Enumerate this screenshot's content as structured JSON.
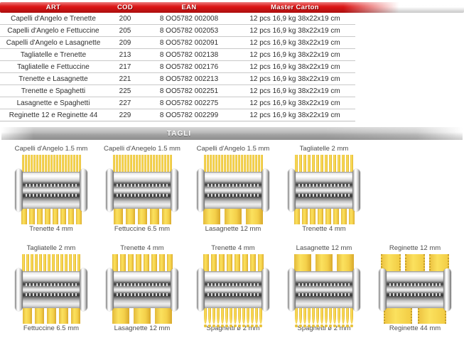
{
  "table": {
    "headers": {
      "art": "ART",
      "cod": "COD",
      "ean": "EAN",
      "carton": "Master Carton"
    },
    "rows": [
      {
        "art": "Capelli d'Angelo e Trenette",
        "cod": "200",
        "ean": "8 OO5782 002008",
        "carton": "12 pcs 16,9 kg 38x22x19 cm"
      },
      {
        "art": "Capelli d'Angelo e Fettuccine",
        "cod": "205",
        "ean": "8 OO5782 002053",
        "carton": "12 pcs 16,9 kg 38x22x19 cm"
      },
      {
        "art": "Capelli d'Angelo e Lasagnette",
        "cod": "209",
        "ean": "8 OO5782 002091",
        "carton": "12 pcs 16,9 kg 38x22x19 cm"
      },
      {
        "art": "Tagliatelle e Trenette",
        "cod": "213",
        "ean": "8 OO5782 002138",
        "carton": "12 pcs 16,9 kg 38x22x19 cm"
      },
      {
        "art": "Tagliatelle e Fettuccine",
        "cod": "217",
        "ean": "8 OO5782 002176",
        "carton": "12 pcs 16,9 kg 38x22x19 cm"
      },
      {
        "art": "Trenette e Lasagnette",
        "cod": "221",
        "ean": "8 OO5782 002213",
        "carton": "12 pcs 16,9 kg 38x22x19 cm"
      },
      {
        "art": "Trenette e Spaghetti",
        "cod": "225",
        "ean": "8 OO5782 002251",
        "carton": "12 pcs 16,9 kg 38x22x19 cm"
      },
      {
        "art": "Lasagnette e Spaghetti",
        "cod": "227",
        "ean": "8 OO5782 002275",
        "carton": "12 pcs 16,9 kg 38x22x19 cm"
      },
      {
        "art": "Reginette 12 e Reginette 44",
        "cod": "229",
        "ean": "8 OO5782 002299",
        "carton": "12 pcs 16,9 kg 38x22x19 cm"
      }
    ]
  },
  "banner": {
    "label": "TAGLI"
  },
  "cutters": {
    "rows": [
      [
        {
          "top": {
            "label": "Capelli d'Angelo 1.5 mm",
            "mm": 1.5,
            "style": "flat"
          },
          "bottom": {
            "label": "Trenette 4 mm",
            "mm": 4,
            "style": "flat"
          }
        },
        {
          "top": {
            "label": "Capelli d'Anegelo 1.5 mm",
            "mm": 1.5,
            "style": "flat"
          },
          "bottom": {
            "label": "Fettuccine 6.5 mm",
            "mm": 6.5,
            "style": "flat"
          }
        },
        {
          "top": {
            "label": "Capelli d'Angelo 1.5 mm",
            "mm": 1.5,
            "style": "flat"
          },
          "bottom": {
            "label": "Lasagnette 12 mm",
            "mm": 12,
            "style": "flat"
          }
        },
        {
          "top": {
            "label": "Tagliatelle 2 mm",
            "mm": 2,
            "style": "flat"
          },
          "bottom": {
            "label": "Trenette 4 mm",
            "mm": 4,
            "style": "flat"
          }
        }
      ],
      [
        {
          "top": {
            "label": "Tagliatelle 2 mm",
            "mm": 2,
            "style": "flat"
          },
          "bottom": {
            "label": "Fettuccine 6.5 mm",
            "mm": 6.5,
            "style": "flat"
          }
        },
        {
          "top": {
            "label": "Trenette 4 mm",
            "mm": 4,
            "style": "flat"
          },
          "bottom": {
            "label": "Lasagnette 12 mm",
            "mm": 12,
            "style": "flat"
          }
        },
        {
          "top": {
            "label": "Trenette 4 mm",
            "mm": 4,
            "style": "flat"
          },
          "bottom": {
            "label": "Spaghetti ø 2 mm",
            "mm": 2,
            "style": "round"
          }
        },
        {
          "top": {
            "label": "Lasagnette 12 mm",
            "mm": 12,
            "style": "flat"
          },
          "bottom": {
            "label": "Spaghetti ø 2 mm",
            "mm": 2,
            "style": "round"
          }
        },
        {
          "top": {
            "label": "Reginette 12 mm",
            "mm": 12,
            "style": "serrated"
          },
          "bottom": {
            "label": "Reginette 44 mm",
            "mm": 44,
            "style": "serrated"
          }
        }
      ]
    ]
  },
  "colors": {
    "header_red": "#dc1414",
    "banner_gray": "#b0b0b0",
    "pasta_yellow": "#f4d04a",
    "text_dark": "#333333"
  }
}
